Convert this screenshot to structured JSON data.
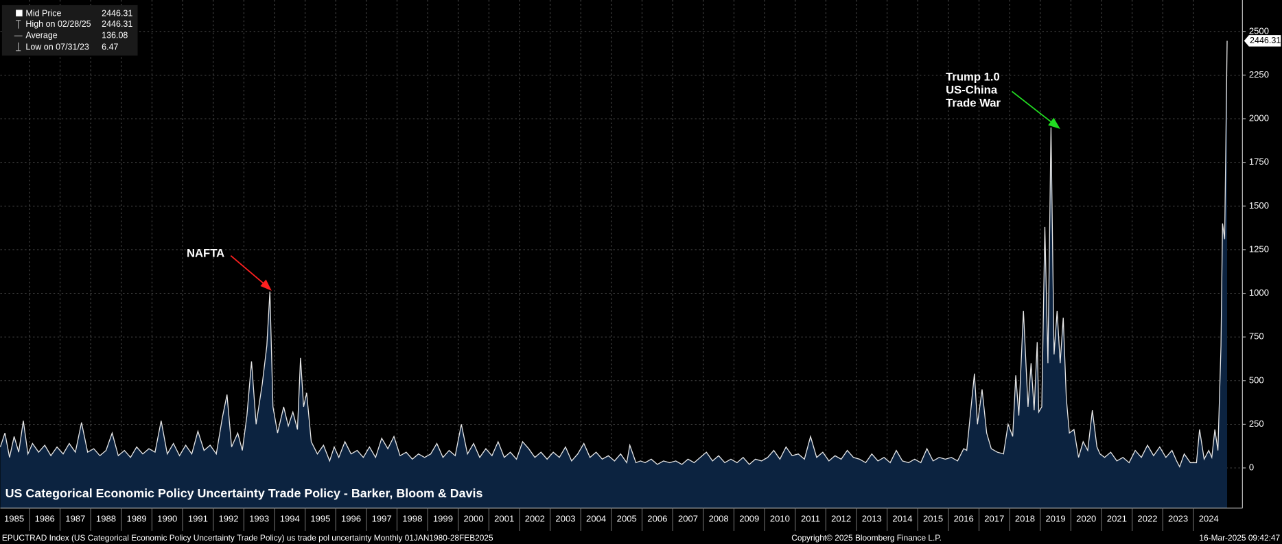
{
  "chart_data": {
    "type": "area",
    "title": "US Categorical Economic Policy Uncertainty Trade Policy - Barker, Bloom & Davis",
    "legend": [
      {
        "label": "Mid Price",
        "value": 2446.31
      },
      {
        "label": "High on 02/28/25",
        "value": 2446.31
      },
      {
        "label": "Average",
        "value": 136.08
      },
      {
        "label": "Low on 07/31/23",
        "value": 6.47
      }
    ],
    "annotations": [
      {
        "lines": [
          "NAFTA"
        ],
        "color": "#ff2020"
      },
      {
        "lines": [
          "Trump 1.0",
          "US-China",
          "Trade War"
        ],
        "color": "#22dd22"
      }
    ],
    "footer": {
      "left": "EPUCTRAD Index (US Categorical Economic Policy Uncertainty Trade Policy) us trade pol uncertainty  Monthly 01JAN1980-28FEB2025",
      "center": "Copyright© 2025 Bloomberg Finance L.P.",
      "right": "16-Mar-2025 09:42:47"
    },
    "xlim": [
      1985.05,
      2025.6
    ],
    "xticks": [
      1985,
      1986,
      1987,
      1988,
      1989,
      1990,
      1991,
      1992,
      1993,
      1994,
      1995,
      1996,
      1997,
      1998,
      1999,
      2000,
      2001,
      2002,
      2003,
      2004,
      2005,
      2006,
      2007,
      2008,
      2009,
      2010,
      2011,
      2012,
      2013,
      2014,
      2015,
      2016,
      2017,
      2018,
      2019,
      2020,
      2021,
      2022,
      2023,
      2024
    ],
    "ylim": [
      -230,
      2680
    ],
    "yticks": [
      0,
      250,
      500,
      750,
      1000,
      1250,
      1500,
      1750,
      2000,
      2250,
      2500
    ],
    "grid": true,
    "x": [
      1985.05,
      1985.2,
      1985.35,
      1985.5,
      1985.65,
      1985.8,
      1985.95,
      1986.1,
      1986.3,
      1986.5,
      1986.7,
      1986.9,
      1987.1,
      1987.3,
      1987.5,
      1987.7,
      1987.9,
      1988.1,
      1988.3,
      1988.5,
      1988.7,
      1988.9,
      1989.1,
      1989.3,
      1989.5,
      1989.7,
      1989.9,
      1990.1,
      1990.3,
      1990.5,
      1990.7,
      1990.9,
      1991.1,
      1991.3,
      1991.5,
      1991.7,
      1991.9,
      1992.1,
      1992.3,
      1992.45,
      1992.6,
      1992.8,
      1992.95,
      1993.1,
      1993.25,
      1993.4,
      1993.6,
      1993.75,
      1993.85,
      1993.95,
      1994.1,
      1994.3,
      1994.45,
      1994.6,
      1994.75,
      1994.85,
      1994.95,
      1995.05,
      1995.2,
      1995.4,
      1995.6,
      1995.8,
      1995.95,
      1996.1,
      1996.3,
      1996.5,
      1996.7,
      1996.9,
      1997.1,
      1997.3,
      1997.5,
      1997.7,
      1997.9,
      1998.1,
      1998.3,
      1998.5,
      1998.7,
      1998.9,
      1999.1,
      1999.3,
      1999.5,
      1999.7,
      1999.9,
      2000.1,
      2000.3,
      2000.5,
      2000.7,
      2000.9,
      2001.1,
      2001.3,
      2001.5,
      2001.7,
      2001.9,
      2002.1,
      2002.3,
      2002.5,
      2002.7,
      2002.9,
      2003.1,
      2003.3,
      2003.5,
      2003.7,
      2003.9,
      2004.1,
      2004.3,
      2004.5,
      2004.7,
      2004.9,
      2005.1,
      2005.3,
      2005.5,
      2005.6,
      2005.8,
      2005.95,
      2006.1,
      2006.3,
      2006.5,
      2006.7,
      2006.9,
      2007.1,
      2007.3,
      2007.5,
      2007.7,
      2007.9,
      2008.1,
      2008.3,
      2008.5,
      2008.7,
      2008.9,
      2009.1,
      2009.3,
      2009.5,
      2009.7,
      2009.9,
      2010.1,
      2010.3,
      2010.5,
      2010.7,
      2010.9,
      2011.1,
      2011.3,
      2011.5,
      2011.7,
      2011.9,
      2012.1,
      2012.3,
      2012.5,
      2012.7,
      2012.9,
      2013.1,
      2013.3,
      2013.5,
      2013.7,
      2013.9,
      2014.1,
      2014.3,
      2014.5,
      2014.7,
      2014.9,
      2015.1,
      2015.3,
      2015.5,
      2015.7,
      2015.9,
      2016.1,
      2016.3,
      2016.5,
      2016.6,
      2016.85,
      2016.95,
      2017.1,
      2017.25,
      2017.4,
      2017.6,
      2017.8,
      2017.95,
      2018.1,
      2018.2,
      2018.3,
      2018.45,
      2018.6,
      2018.7,
      2018.8,
      2018.9,
      2018.95,
      2019.05,
      2019.15,
      2019.25,
      2019.35,
      2019.45,
      2019.55,
      2019.65,
      2019.75,
      2019.85,
      2019.95,
      2020.1,
      2020.25,
      2020.4,
      2020.55,
      2020.7,
      2020.85,
      2020.95,
      2021.1,
      2021.3,
      2021.5,
      2021.7,
      2021.9,
      2022.1,
      2022.3,
      2022.5,
      2022.7,
      2022.9,
      2023.1,
      2023.3,
      2023.45,
      2023.55,
      2023.7,
      2023.9,
      2024.1,
      2024.2,
      2024.35,
      2024.5,
      2024.6,
      2024.7,
      2024.8,
      2024.9,
      2024.95,
      2025.02,
      2025.1
    ],
    "series": [
      {
        "name": "Mid Price",
        "color": "#e6e6e6",
        "fill": "#0c2340",
        "values": [
          120,
          200,
          60,
          180,
          90,
          270,
          80,
          140,
          90,
          130,
          70,
          120,
          80,
          140,
          90,
          260,
          90,
          110,
          70,
          100,
          200,
          70,
          100,
          60,
          120,
          80,
          110,
          90,
          270,
          80,
          140,
          70,
          130,
          80,
          210,
          100,
          130,
          80,
          290,
          420,
          120,
          200,
          100,
          300,
          610,
          250,
          480,
          700,
          1010,
          350,
          200,
          350,
          240,
          320,
          220,
          630,
          350,
          430,
          150,
          80,
          130,
          40,
          120,
          60,
          150,
          80,
          100,
          60,
          120,
          60,
          170,
          110,
          180,
          70,
          90,
          50,
          80,
          60,
          80,
          140,
          60,
          100,
          70,
          250,
          80,
          140,
          60,
          110,
          70,
          150,
          60,
          90,
          50,
          150,
          110,
          60,
          90,
          50,
          90,
          60,
          120,
          40,
          80,
          140,
          60,
          90,
          50,
          70,
          40,
          80,
          30,
          130,
          30,
          40,
          30,
          50,
          20,
          40,
          30,
          40,
          20,
          50,
          30,
          60,
          90,
          40,
          70,
          30,
          50,
          30,
          60,
          20,
          50,
          40,
          60,
          100,
          50,
          120,
          70,
          80,
          50,
          180,
          60,
          90,
          40,
          70,
          50,
          100,
          60,
          50,
          30,
          80,
          40,
          60,
          30,
          100,
          40,
          30,
          50,
          30,
          110,
          40,
          60,
          50,
          60,
          40,
          110,
          100,
          540,
          250,
          450,
          200,
          110,
          90,
          80,
          250,
          180,
          530,
          300,
          900,
          350,
          600,
          330,
          720,
          320,
          350,
          1380,
          600,
          1950,
          650,
          900,
          600,
          860,
          400,
          200,
          220,
          60,
          150,
          100,
          330,
          120,
          80,
          60,
          90,
          40,
          60,
          30,
          100,
          60,
          130,
          70,
          120,
          60,
          100,
          40,
          6.47,
          80,
          30,
          30,
          220,
          50,
          100,
          60,
          220,
          100,
          700,
          1400,
          1310,
          2446.31
        ]
      }
    ]
  }
}
